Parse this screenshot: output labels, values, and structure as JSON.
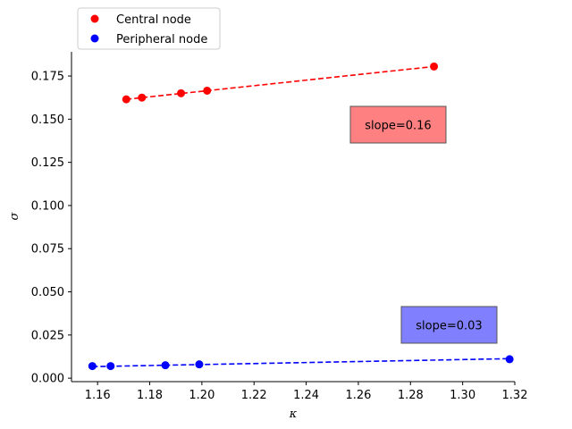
{
  "chart_data": {
    "type": "scatter",
    "title": "",
    "xlabel": "κ",
    "ylabel": "σ",
    "xlim": [
      1.15,
      1.32
    ],
    "ylim": [
      -0.002,
      0.189
    ],
    "xticks": [
      1.16,
      1.18,
      1.2,
      1.22,
      1.24,
      1.26,
      1.28,
      1.3,
      1.32
    ],
    "xtick_labels": [
      "1.16",
      "1.18",
      "1.20",
      "1.22",
      "1.24",
      "1.26",
      "1.28",
      "1.30",
      "1.32"
    ],
    "yticks": [
      0.0,
      0.025,
      0.05,
      0.075,
      0.1,
      0.125,
      0.15,
      0.175
    ],
    "ytick_labels": [
      "0.000",
      "0.025",
      "0.050",
      "0.075",
      "0.100",
      "0.125",
      "0.150",
      "0.175"
    ],
    "grid": false,
    "legend_position": "top-left",
    "series": [
      {
        "name": "Central node",
        "color": "#ff0000",
        "x": [
          1.171,
          1.177,
          1.192,
          1.202,
          1.289
        ],
        "y": [
          0.1615,
          0.1625,
          0.165,
          0.1665,
          0.1805
        ],
        "fit_line": {
          "x": [
            1.171,
            1.289
          ],
          "y": [
            0.1615,
            0.1805
          ]
        },
        "annotation": "slope=0.16",
        "annotation_color": "#ff8080"
      },
      {
        "name": "Peripheral node",
        "color": "#0000ff",
        "x": [
          1.158,
          1.165,
          1.186,
          1.199,
          1.318
        ],
        "y": [
          0.007,
          0.007,
          0.0075,
          0.008,
          0.011
        ],
        "fit_line": {
          "x": [
            1.158,
            1.318
          ],
          "y": [
            0.0067,
            0.0113
          ]
        },
        "annotation": "slope=0.03",
        "annotation_color": "#8080ff"
      }
    ]
  }
}
